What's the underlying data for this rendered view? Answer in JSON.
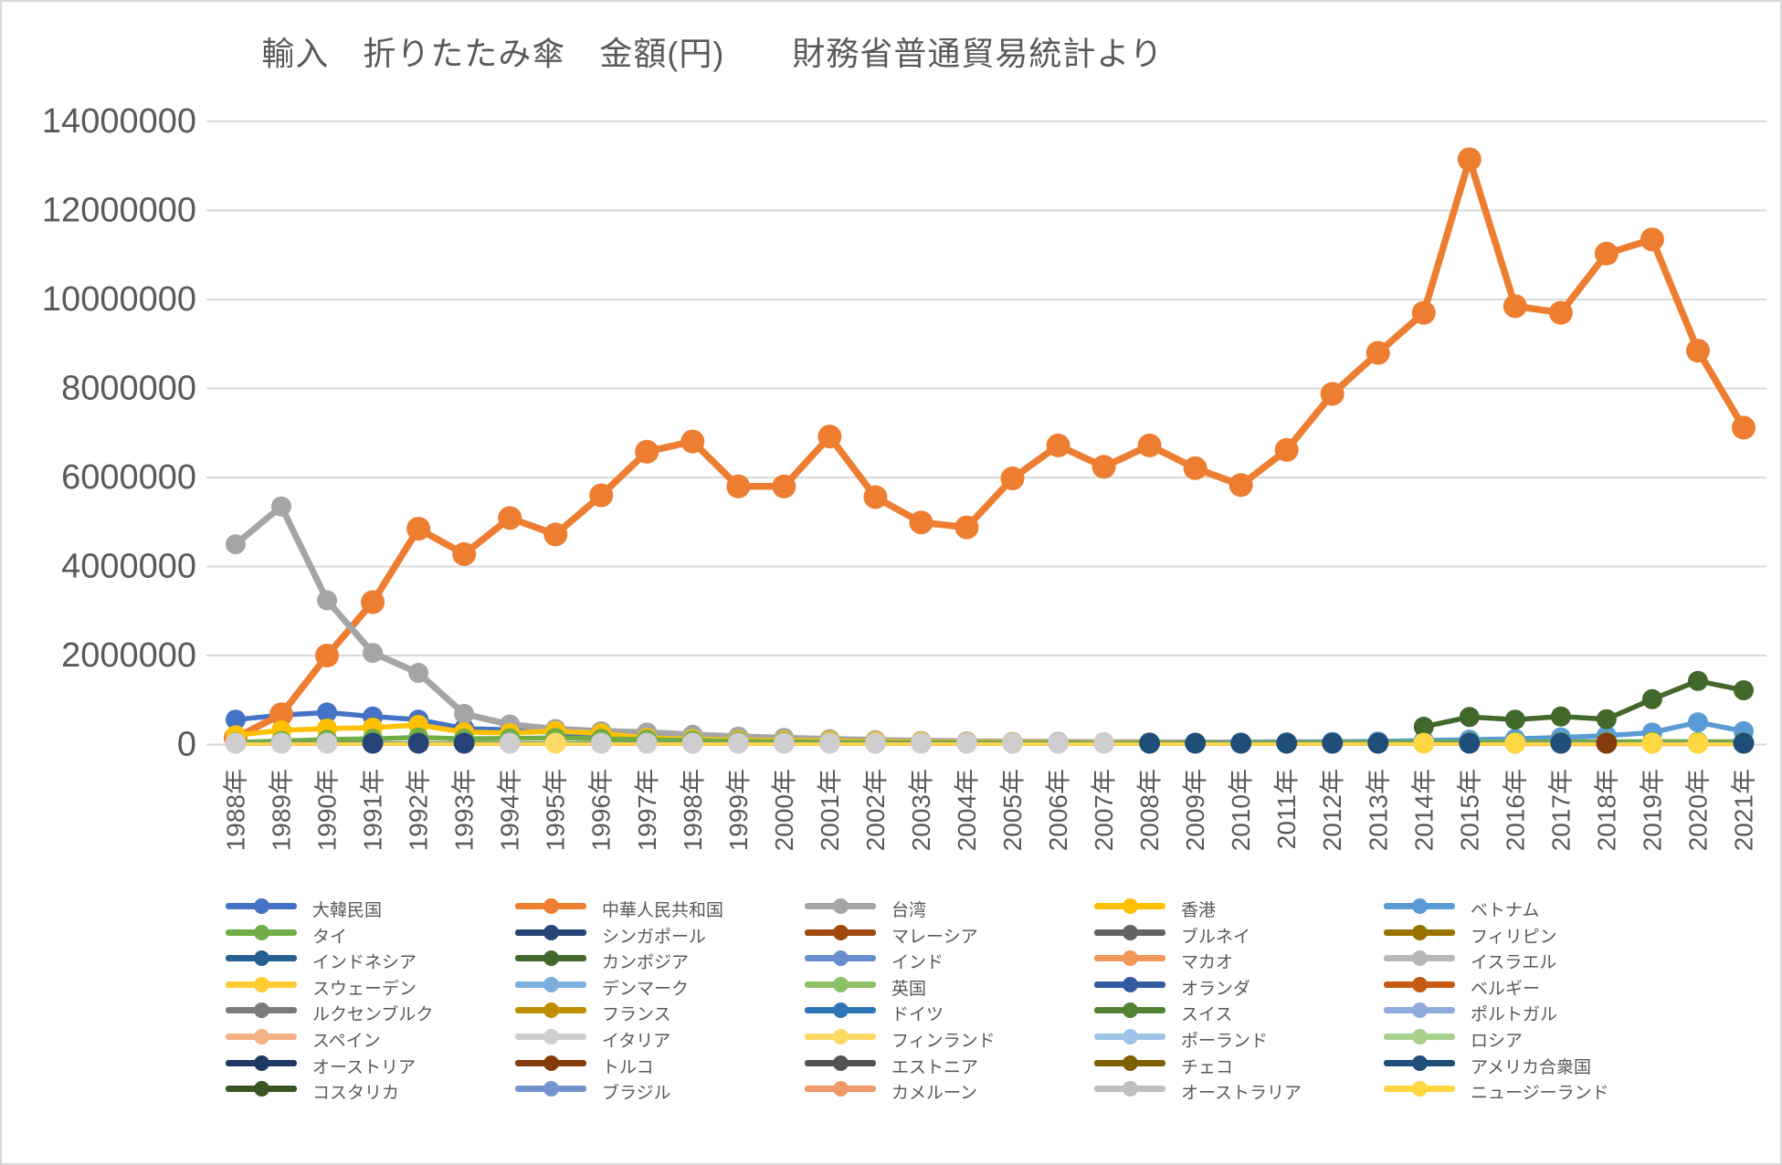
{
  "chart_data": {
    "type": "line",
    "title": "輸入　折りたたみ傘　金額(円)　　財務省普通貿易統計より",
    "xlabel": "",
    "ylabel": "",
    "y_axis": {
      "min": 0,
      "max": 14000000,
      "step": 2000000
    },
    "y_ticks": [
      0,
      2000000,
      4000000,
      6000000,
      8000000,
      10000000,
      12000000,
      14000000
    ],
    "grid": true,
    "legend_position": "bottom",
    "x_categories": [
      "1988年",
      "1989年",
      "1990年",
      "1991年",
      "1992年",
      "1993年",
      "1994年",
      "1995年",
      "1996年",
      "1997年",
      "1998年",
      "1999年",
      "2000年",
      "2001年",
      "2002年",
      "2003年",
      "2004年",
      "2005年",
      "2006年",
      "2007年",
      "2008年",
      "2009年",
      "2010年",
      "2011年",
      "2012年",
      "2013年",
      "2014年",
      "2015年",
      "2016年",
      "2017年",
      "2018年",
      "2019年",
      "2020年",
      "2021年"
    ],
    "colors": {
      "grid": "#d9d9d9",
      "axis_text": "#595959",
      "title_text": "#595959",
      "background": "#ffffff",
      "border": "#d9d9d9"
    },
    "countries": [
      {
        "label": "大韓民国",
        "color": "#4472C4",
        "values": [
          560000,
          660000,
          720000,
          630000,
          560000,
          360000,
          330000,
          270000,
          200000,
          130000,
          100000,
          80000,
          60000,
          60000,
          50000,
          40000,
          40000,
          40000,
          30000,
          30000,
          30000,
          30000,
          30000,
          30000,
          30000,
          40000,
          40000,
          40000,
          40000,
          30000,
          30000,
          30000,
          30000,
          30000
        ]
      },
      {
        "label": "中華人民共和国",
        "color": "#ED7D31",
        "values": [
          150000,
          680000,
          2000000,
          3200000,
          4850000,
          4280000,
          5090000,
          4720000,
          5600000,
          6580000,
          6810000,
          5800000,
          5800000,
          6920000,
          5560000,
          4990000,
          4880000,
          5980000,
          6720000,
          6240000,
          6720000,
          6210000,
          5830000,
          6620000,
          7880000,
          8800000,
          9700000,
          13150000,
          9850000,
          9700000,
          11030000,
          11350000,
          8850000,
          7120000
        ]
      },
      {
        "label": "台湾",
        "color": "#A5A5A5",
        "values": [
          4500000,
          5350000,
          3240000,
          2060000,
          1610000,
          690000,
          450000,
          350000,
          300000,
          270000,
          220000,
          180000,
          150000,
          120000,
          100000,
          80000,
          70000,
          60000,
          60000,
          50000,
          50000,
          40000,
          40000,
          50000,
          50000,
          60000,
          60000,
          60000,
          50000,
          50000,
          50000,
          40000,
          50000,
          50000
        ]
      },
      {
        "label": "香港",
        "color": "#FFC000",
        "values": [
          210000,
          320000,
          360000,
          380000,
          440000,
          280000,
          260000,
          300000,
          250000,
          150000,
          120000,
          100000,
          90000,
          80000,
          70000,
          60000,
          50000,
          50000,
          40000,
          40000,
          40000,
          30000,
          30000,
          30000,
          30000,
          30000,
          30000,
          30000,
          20000,
          20000,
          20000,
          20000,
          20000,
          20000
        ]
      },
      {
        "label": "ベトナム",
        "color": "#5B9BD5",
        "values": [
          null,
          null,
          null,
          null,
          null,
          null,
          null,
          null,
          null,
          null,
          null,
          null,
          null,
          null,
          null,
          null,
          null,
          null,
          null,
          null,
          null,
          30000,
          40000,
          50000,
          60000,
          70000,
          90000,
          110000,
          130000,
          160000,
          200000,
          270000,
          500000,
          300000
        ]
      },
      {
        "label": "タイ",
        "color": "#70AD47",
        "values": [
          50000,
          80000,
          110000,
          130000,
          160000,
          130000,
          140000,
          150000,
          130000,
          110000,
          90000,
          70000,
          60000,
          50000,
          40000,
          40000,
          35000,
          30000,
          30000,
          30000,
          30000,
          30000,
          30000,
          35000,
          40000,
          45000,
          50000,
          55000,
          55000,
          60000,
          60000,
          65000,
          60000,
          55000
        ]
      },
      {
        "label": "シンガポール",
        "color": "#264478",
        "constant": 15000
      },
      {
        "label": "マレーシア",
        "color": "#9E480E",
        "constant": 12000
      },
      {
        "label": "ブルネイ",
        "color": "#636363",
        "constant": 5000
      },
      {
        "label": "フィリピン",
        "color": "#997300",
        "constant": 18000
      },
      {
        "label": "インドネシア",
        "color": "#255E91",
        "constant": 22000
      },
      {
        "label": "カンボジア",
        "color": "#43682B",
        "values": [
          null,
          null,
          null,
          null,
          null,
          null,
          null,
          null,
          null,
          null,
          null,
          null,
          null,
          null,
          null,
          null,
          null,
          null,
          null,
          null,
          null,
          null,
          null,
          null,
          null,
          null,
          400000,
          620000,
          560000,
          630000,
          570000,
          1020000,
          1430000,
          1220000
        ]
      },
      {
        "label": "インド",
        "color": "#698ED0",
        "constant": 10000
      },
      {
        "label": "マカオ",
        "color": "#F1975A",
        "constant": 6000
      },
      {
        "label": "イスラエル",
        "color": "#B7B7B7",
        "constant": 5000
      },
      {
        "label": "スウェーデン",
        "color": "#FFCD33",
        "constant": 30000
      },
      {
        "label": "デンマーク",
        "color": "#7CAFDD",
        "constant": 25000
      },
      {
        "label": "英国",
        "color": "#8CC168",
        "constant": 35000
      },
      {
        "label": "オランダ",
        "color": "#335AA1",
        "constant": 15000
      },
      {
        "label": "ベルギー",
        "color": "#C55A11",
        "constant": 8000
      },
      {
        "label": "ルクセンブルク",
        "color": "#7B7B7B",
        "constant": 6000
      },
      {
        "label": "フランス",
        "color": "#BF8F00",
        "constant": 28000
      },
      {
        "label": "ドイツ",
        "color": "#2E75B6",
        "constant": 26000
      },
      {
        "label": "スイス",
        "color": "#548235",
        "constant": 12000
      },
      {
        "label": "ポルトガル",
        "color": "#8FAADC",
        "constant": 9000
      },
      {
        "label": "スペイン",
        "color": "#F4B183",
        "constant": 14000
      },
      {
        "label": "イタリア",
        "color": "#CFCDCD",
        "constant": 20000
      },
      {
        "label": "フィンランド",
        "color": "#FFD966",
        "constant": 10000
      },
      {
        "label": "ポーランド",
        "color": "#9DC3E6",
        "constant": 16000
      },
      {
        "label": "ロシア",
        "color": "#A9D18E",
        "constant": 7000
      },
      {
        "label": "オーストリア",
        "color": "#203864",
        "constant": 5000
      },
      {
        "label": "トルコ",
        "color": "#843C0C",
        "constant": 8000
      },
      {
        "label": "エストニア",
        "color": "#525252",
        "constant": 4000
      },
      {
        "label": "チェコ",
        "color": "#7F6000",
        "constant": 6000
      },
      {
        "label": "アメリカ合衆国",
        "color": "#1F4E79",
        "constant": 24000
      },
      {
        "label": "コスタリカ",
        "color": "#375623",
        "constant": 4000
      },
      {
        "label": "ブラジル",
        "color": "#7493CE",
        "constant": 7000
      },
      {
        "label": "カメルーン",
        "color": "#F0996A",
        "constant": 5000
      },
      {
        "label": "オーストラリア",
        "color": "#BFBFBF",
        "constant": 18000
      },
      {
        "label": "ニュージーランド",
        "color": "#FFD741",
        "constant": 12000
      }
    ],
    "zero_marker_colors_by_year": [
      "#CFCDCD",
      "#CFCDCD",
      "#CFCDCD",
      "#264478",
      "#264478",
      "#264478",
      "#CFCDCD",
      "#FFD966",
      "#CFCDCD",
      "#CFCDCD",
      "#CFCDCD",
      "#CFCDCD",
      "#CFCDCD",
      "#CFCDCD",
      "#CFCDCD",
      "#CFCDCD",
      "#CFCDCD",
      "#CFCDCD",
      "#CFCDCD",
      "#CFCDCD",
      "#1F4E79",
      "#1F4E79",
      "#1F4E79",
      "#1F4E79",
      "#1F4E79",
      "#1F4E79",
      "#FFD741",
      "#1F4E79",
      "#FFD741",
      "#1F4E79",
      "#843C0C",
      "#FFD741",
      "#FFD741",
      "#1F4E79"
    ]
  }
}
